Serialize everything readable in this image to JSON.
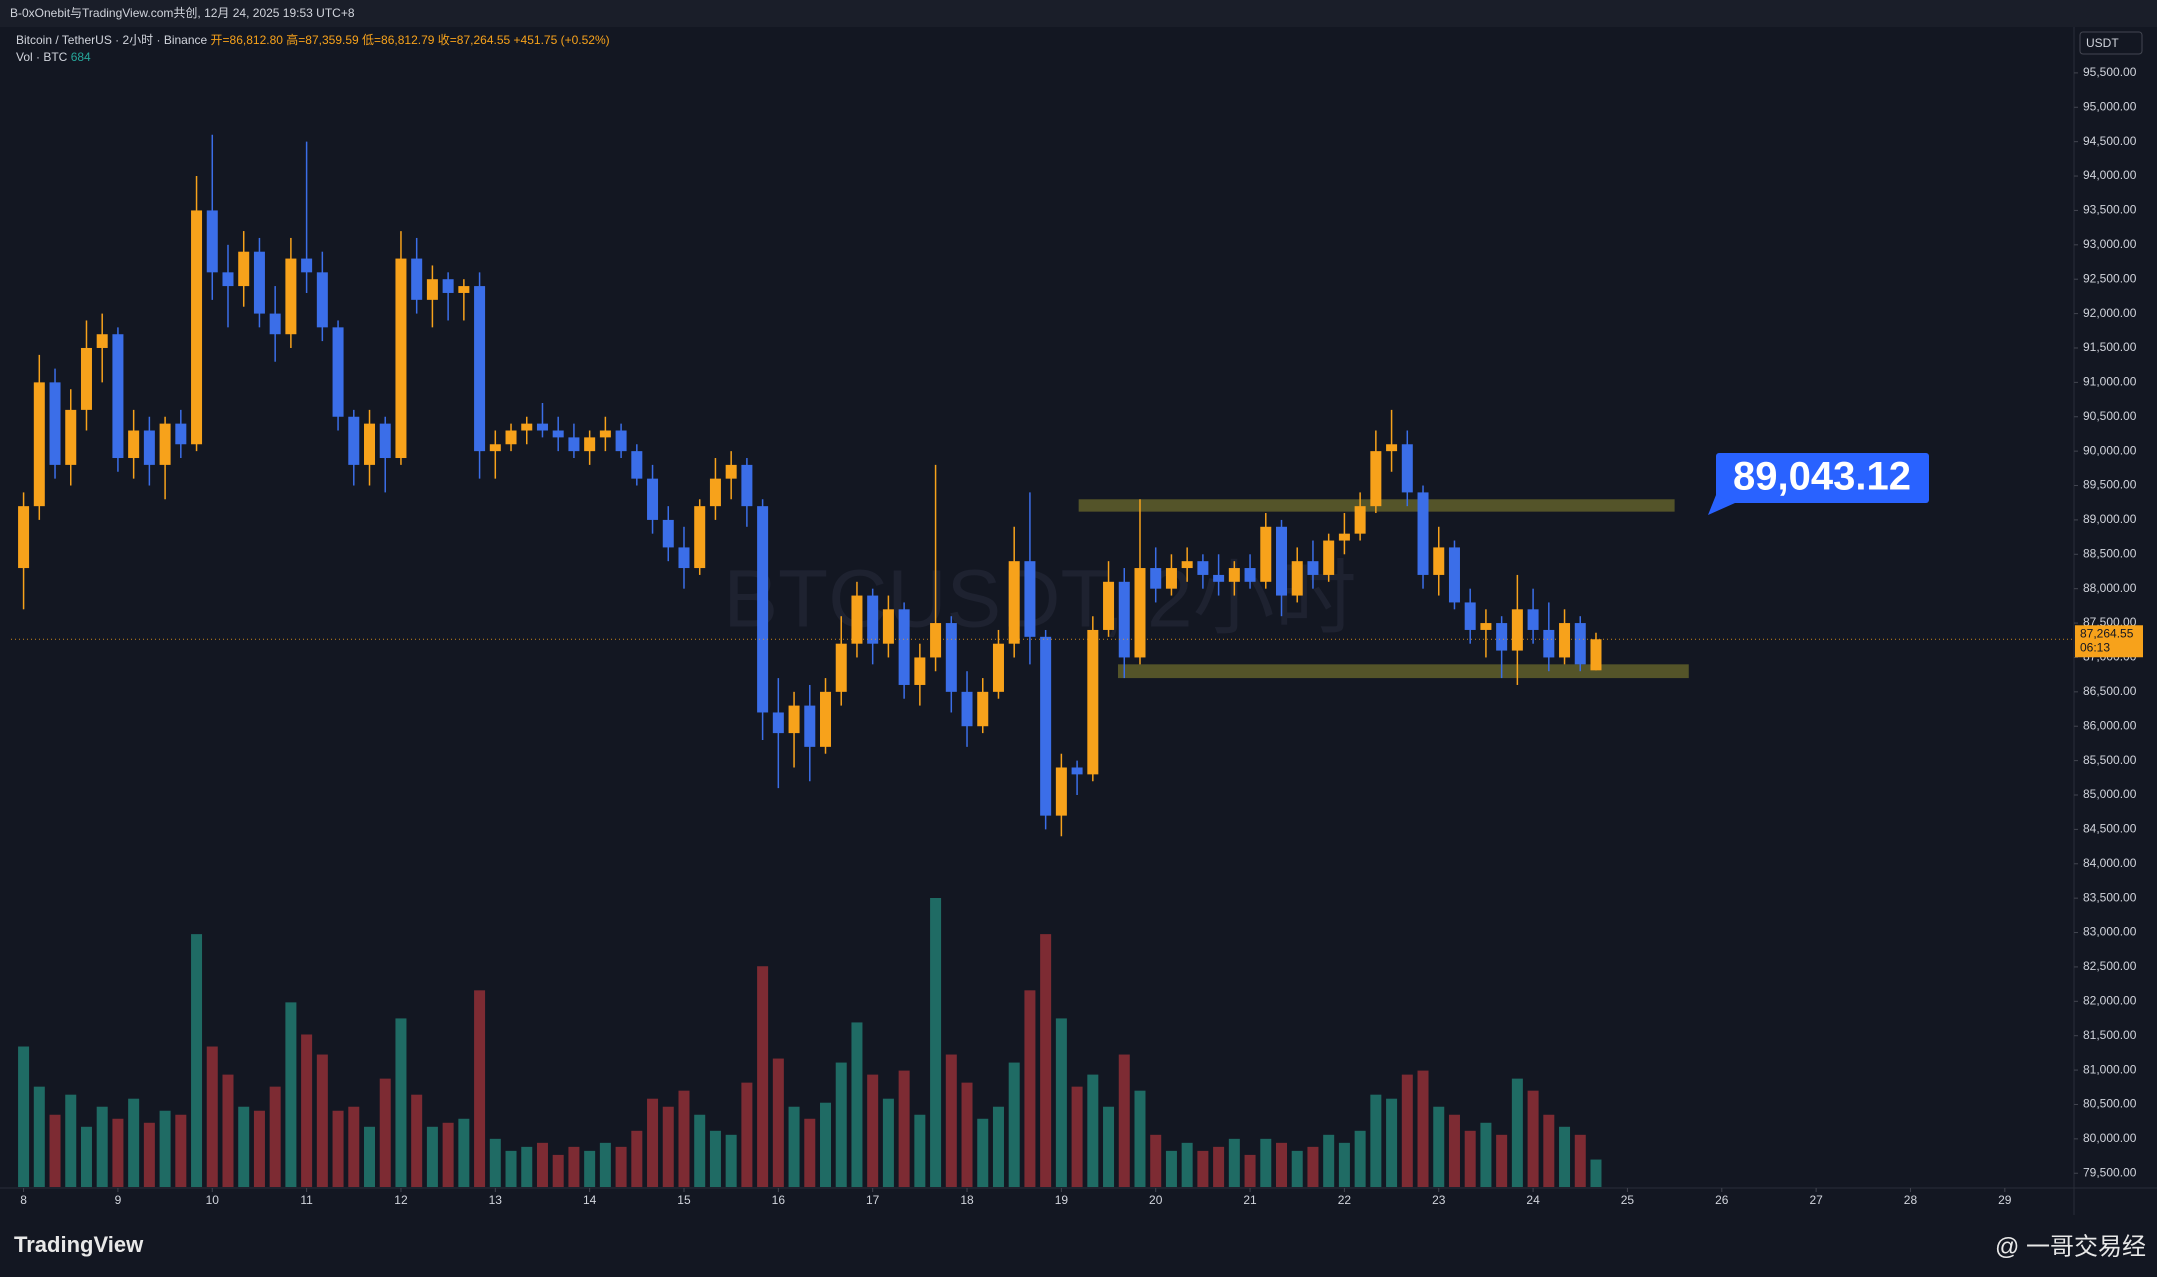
{
  "chart_data": {
    "type": "candlestick",
    "source": "B-0xOnebit与TradingView.com共创, 12月 24, 2025 19:53 UTC+8",
    "legend": {
      "symbol": "Bitcoin / TetherUS · 2小时 · Binance",
      "open": "开=86,812.80",
      "high": "高=87,359.59",
      "low": "低=86,812.79",
      "close": "收=87,264.55",
      "change": "+451.75 (+0.52%)",
      "vol_label": "Vol · BTC",
      "vol_value": "684"
    },
    "watermark": "BTCUSDT, 2小时",
    "currency": "USDT",
    "last_price_label": "87,264.55",
    "countdown": "06:13",
    "callout": "89,043.12",
    "brand": "TradingView",
    "credit": "@ 一哥交易经",
    "up_color": "#f7a21b",
    "down_color": "#3b6ee8",
    "vol_up_color": "#1f6b64",
    "vol_down_color": "#7d2b33",
    "open": [
      88300,
      89200,
      91000,
      89800,
      90600,
      91500,
      91700,
      89900,
      90300,
      89800,
      90400,
      90100,
      93500,
      92600,
      92400,
      92900,
      92000,
      91700,
      92800,
      92600,
      91800,
      90500,
      89800,
      90400,
      89900,
      92800,
      92200,
      92500,
      92300,
      92400,
      90000,
      90100,
      90300,
      90400,
      90300,
      90200,
      90000,
      90200,
      90300,
      90000,
      89600,
      89000,
      88600,
      88300,
      89200,
      89600,
      89800,
      89200,
      86200,
      85900,
      86300,
      85700,
      86500,
      87200,
      87900,
      87200,
      87700,
      86600,
      87000,
      87500,
      86500,
      86000,
      86500,
      87200,
      88400,
      87300,
      84700,
      85400,
      85300,
      87400,
      88100,
      87000,
      88300,
      88000,
      88300,
      88400,
      88200,
      88100,
      88300,
      88100,
      88900,
      87900,
      88400,
      88200,
      88700,
      88800,
      89200,
      90000,
      90100,
      89400,
      88200,
      88600,
      87800,
      87400,
      87500,
      87100,
      87700,
      87400,
      87000,
      87500,
      86812.8
    ],
    "high": [
      89400,
      91400,
      91200,
      90900,
      91900,
      92000,
      91800,
      90600,
      90500,
      90500,
      90600,
      94000,
      94600,
      93000,
      93200,
      93100,
      92400,
      93100,
      94500,
      92900,
      91900,
      90600,
      90600,
      90500,
      93200,
      93100,
      92700,
      92600,
      92500,
      92600,
      90300,
      90400,
      90500,
      90700,
      90500,
      90400,
      90300,
      90500,
      90400,
      90100,
      89800,
      89200,
      88900,
      89300,
      89900,
      90000,
      89900,
      89300,
      86700,
      86500,
      86600,
      86700,
      87600,
      88100,
      88000,
      87900,
      87800,
      87200,
      89800,
      87600,
      86800,
      86700,
      87400,
      88900,
      89400,
      87400,
      85600,
      85500,
      87600,
      88400,
      88300,
      89300,
      88600,
      88500,
      88600,
      88500,
      88500,
      88400,
      88500,
      89100,
      89000,
      88600,
      88700,
      88800,
      89100,
      89400,
      90300,
      90600,
      90300,
      89500,
      88900,
      88700,
      88000,
      87700,
      87600,
      88200,
      88000,
      87800,
      87700,
      87600,
      87359.59
    ],
    "low": [
      87700,
      89000,
      89600,
      89500,
      90300,
      91000,
      89700,
      89600,
      89500,
      89300,
      89900,
      90000,
      92200,
      91800,
      92100,
      91800,
      91300,
      91500,
      92300,
      91600,
      90300,
      89500,
      89500,
      89400,
      89800,
      92000,
      91800,
      91900,
      91900,
      89600,
      89600,
      90000,
      90100,
      90200,
      90000,
      89900,
      89800,
      90000,
      89900,
      89500,
      88800,
      88400,
      88000,
      88200,
      89000,
      89300,
      88900,
      85800,
      85100,
      85400,
      85200,
      85600,
      86300,
      87000,
      86900,
      87000,
      86400,
      86300,
      86800,
      86200,
      85700,
      85900,
      86400,
      87000,
      86900,
      84500,
      84400,
      85000,
      85200,
      87300,
      86700,
      86900,
      87800,
      87900,
      88100,
      88000,
      87900,
      87900,
      88000,
      88000,
      87600,
      87800,
      88000,
      88100,
      88500,
      88700,
      89100,
      89700,
      89200,
      88000,
      87900,
      87700,
      87200,
      87000,
      86700,
      86600,
      87200,
      86800,
      86900,
      86800,
      86812.79
    ],
    "close": [
      89200,
      91000,
      89800,
      90600,
      91500,
      91700,
      89900,
      90300,
      89800,
      90400,
      90100,
      93500,
      92600,
      92400,
      92900,
      92000,
      91700,
      92800,
      92600,
      91800,
      90500,
      89800,
      90400,
      89900,
      92800,
      92200,
      92500,
      92300,
      92400,
      90000,
      90100,
      90300,
      90400,
      90300,
      90200,
      90000,
      90200,
      90300,
      90000,
      89600,
      89000,
      88600,
      88300,
      89200,
      89600,
      89800,
      89200,
      86200,
      85900,
      86300,
      85700,
      86500,
      87200,
      87900,
      87200,
      87700,
      86600,
      87000,
      87500,
      86500,
      86000,
      86500,
      87200,
      88400,
      87300,
      84700,
      85400,
      85300,
      87400,
      88100,
      87000,
      88300,
      88000,
      88300,
      88400,
      88200,
      88100,
      88300,
      88100,
      88900,
      87900,
      88400,
      88200,
      88700,
      88800,
      89200,
      90000,
      90100,
      89400,
      88200,
      88600,
      87800,
      87400,
      87500,
      87100,
      87700,
      87400,
      87000,
      87500,
      86900,
      87264.55
    ],
    "volume": [
      3500,
      2500,
      1800,
      2300,
      1500,
      2000,
      1700,
      2200,
      1600,
      1900,
      1800,
      6300,
      3500,
      2800,
      2000,
      1900,
      2500,
      4600,
      3800,
      3300,
      1900,
      2000,
      1500,
      2700,
      4200,
      2300,
      1500,
      1600,
      1700,
      4900,
      1200,
      900,
      1000,
      1100,
      800,
      1000,
      900,
      1100,
      1000,
      1400,
      2200,
      2000,
      2400,
      1800,
      1400,
      1300,
      2600,
      5500,
      3200,
      2000,
      1700,
      2100,
      3100,
      4100,
      2800,
      2200,
      2900,
      1800,
      7200,
      3300,
      2600,
      1700,
      2000,
      3100,
      4900,
      6300,
      4200,
      2500,
      2800,
      2000,
      3300,
      2400,
      1300,
      900,
      1100,
      900,
      1000,
      1200,
      800,
      1200,
      1100,
      900,
      1000,
      1300,
      1100,
      1400,
      2300,
      2200,
      2800,
      2900,
      2000,
      1800,
      1400,
      1600,
      1300,
      2700,
      2400,
      1800,
      1500,
      1300,
      684
    ],
    "zones": [
      {
        "start": 67.1,
        "end": 105,
        "low": 89120,
        "high": 89300
      },
      {
        "start": 69.6,
        "end": 105.9,
        "low": 86700,
        "high": 86900
      }
    ],
    "xlim": [
      -0.8,
      130.4
    ],
    "xticks": [
      {
        "value": 0,
        "label": "8"
      },
      {
        "value": 6,
        "label": "9"
      },
      {
        "value": 12,
        "label": "10"
      },
      {
        "value": 18,
        "label": "11"
      },
      {
        "value": 24,
        "label": "12"
      },
      {
        "value": 30,
        "label": "13"
      },
      {
        "value": 36,
        "label": "14"
      },
      {
        "value": 42,
        "label": "15"
      },
      {
        "value": 48,
        "label": "16"
      },
      {
        "value": 54,
        "label": "17"
      },
      {
        "value": 60,
        "label": "18"
      },
      {
        "value": 66,
        "label": "19"
      },
      {
        "value": 72,
        "label": "20"
      },
      {
        "value": 78,
        "label": "21"
      },
      {
        "value": 84,
        "label": "22"
      },
      {
        "value": 90,
        "label": "23"
      },
      {
        "value": 96,
        "label": "24"
      },
      {
        "value": 102,
        "label": "25"
      },
      {
        "value": 108,
        "label": "26"
      },
      {
        "value": 114,
        "label": "27"
      },
      {
        "value": 120,
        "label": "28"
      },
      {
        "value": 126,
        "label": "29"
      }
    ],
    "ylim": [
      79300,
      96160
    ],
    "yticks": [
      {
        "value": 79500,
        "label": "79,500.00"
      },
      {
        "value": 80000,
        "label": "80,000.00"
      },
      {
        "value": 80500,
        "label": "80,500.00"
      },
      {
        "value": 81000,
        "label": "81,000.00"
      },
      {
        "value": 81500,
        "label": "81,500.00"
      },
      {
        "value": 82000,
        "label": "82,000.00"
      },
      {
        "value": 82500,
        "label": "82,500.00"
      },
      {
        "value": 83000,
        "label": "83,000.00"
      },
      {
        "value": 83500,
        "label": "83,500.00"
      },
      {
        "value": 84000,
        "label": "84,000.00"
      },
      {
        "value": 84500,
        "label": "84,500.00"
      },
      {
        "value": 85000,
        "label": "85,000.00"
      },
      {
        "value": 85500,
        "label": "85,500.00"
      },
      {
        "value": 86000,
        "label": "86,000.00"
      },
      {
        "value": 86500,
        "label": "86,500.00"
      },
      {
        "value": 87000,
        "label": "87,000.00"
      },
      {
        "value": 87500,
        "label": "87,500.00"
      },
      {
        "value": 88000,
        "label": "88,000.00"
      },
      {
        "value": 88500,
        "label": "88,500.00"
      },
      {
        "value": 89000,
        "label": "89,000.00"
      },
      {
        "value": 89500,
        "label": "89,500.00"
      },
      {
        "value": 90000,
        "label": "90,000.00"
      },
      {
        "value": 90500,
        "label": "90,500.00"
      },
      {
        "value": 91000,
        "label": "91,000.00"
      },
      {
        "value": 91500,
        "label": "91,500.00"
      },
      {
        "value": 92000,
        "label": "92,000.00"
      },
      {
        "value": 92500,
        "label": "92,500.00"
      },
      {
        "value": 93000,
        "label": "93,000.00"
      },
      {
        "value": 93500,
        "label": "93,500.00"
      },
      {
        "value": 94000,
        "label": "94,000.00"
      },
      {
        "value": 94500,
        "label": "94,500.00"
      },
      {
        "value": 95000,
        "label": "95,000.00"
      },
      {
        "value": 95500,
        "label": "95,500.00"
      }
    ],
    "grid": false
  }
}
